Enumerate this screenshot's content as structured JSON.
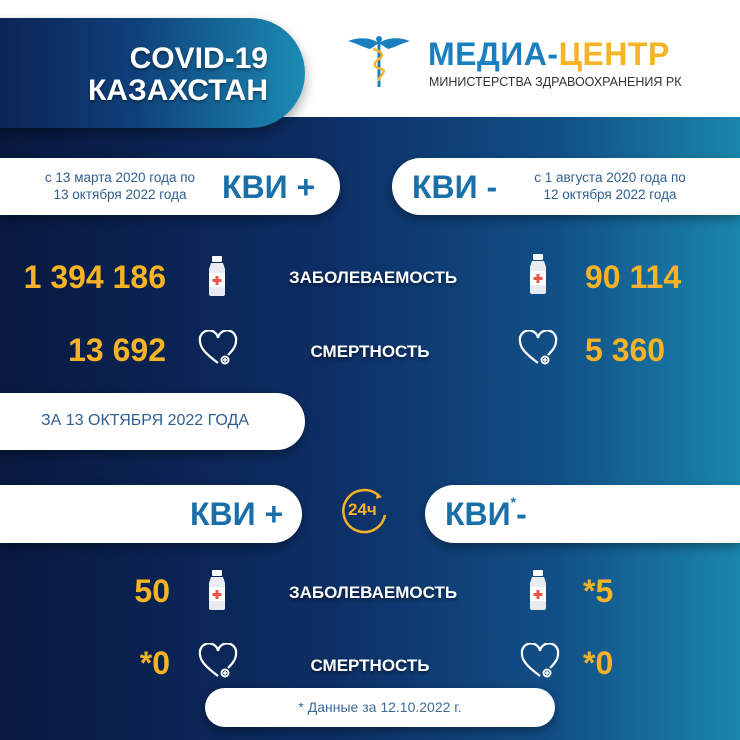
{
  "header": {
    "title_line1": "COVID-19",
    "title_line2": "КАЗАХСТАН",
    "logo_part1": "МЕДИА-",
    "logo_part2": "ЦЕНТР",
    "logo_subtitle": "МИНИСТЕРСТВА ЗДРАВООХРАНЕНИЯ РК"
  },
  "colors": {
    "accent": "#f6b326",
    "brand_blue": "#1a7fbf",
    "bg_dark": "#08183f",
    "bg_teal": "#1a86ad"
  },
  "cumulative": {
    "left": {
      "period_line1": "с 13 марта 2020 года по",
      "period_line2": "13 октября 2022 года",
      "label": "КВИ +",
      "cases": "1 394 186",
      "deaths": "13 692"
    },
    "right": {
      "period_line1": "с 1 августа 2020 года по",
      "period_line2": "12 октября 2022 года",
      "label": "КВИ -",
      "cases": "90 114",
      "deaths": "5 360"
    },
    "cases_label": "ЗАБОЛЕВАЕМОСТЬ",
    "deaths_label": "СМЕРТНОСТЬ"
  },
  "daily": {
    "date_label": "ЗА 13 ОКТЯБРЯ 2022 ГОДА",
    "badge": "24ч",
    "left": {
      "label": "КВИ +",
      "cases": "50",
      "deaths": "*0"
    },
    "right": {
      "label": "КВИ",
      "label_star": "*",
      "label_sign": "-",
      "cases": "*5",
      "deaths": "*0"
    },
    "cases_label": "ЗАБОЛЕВАЕМОСТЬ",
    "deaths_label": "СМЕРТНОСТЬ"
  },
  "footnote": "* Данные за 12.10.2022 г.",
  "icons": {
    "logo": "caduceus-icon",
    "cases": "medicine-bottle-icon",
    "deaths": "heart-stethoscope-icon",
    "daily": "24h-clock-icon"
  }
}
